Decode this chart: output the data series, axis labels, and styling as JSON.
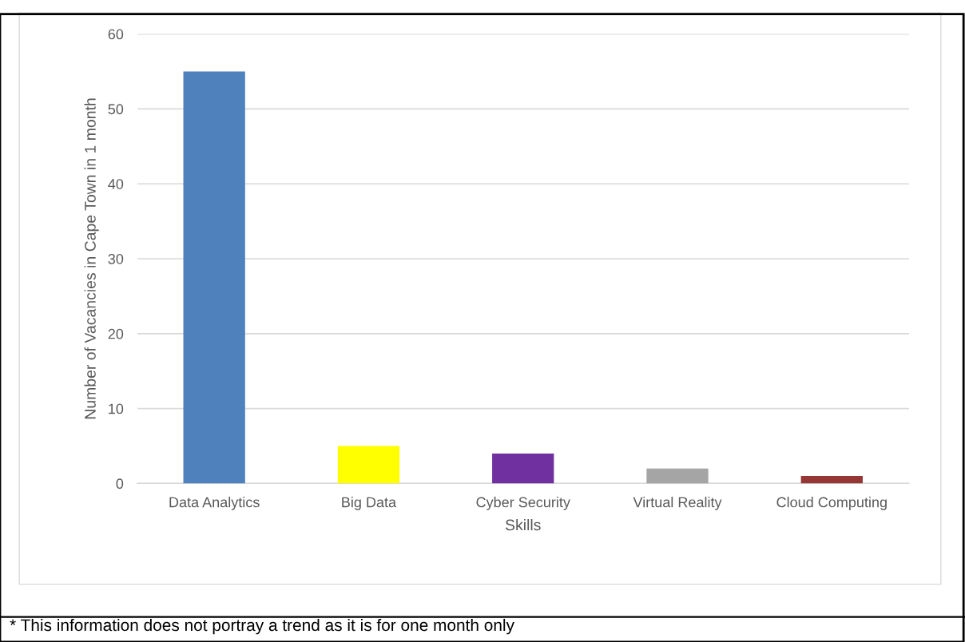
{
  "chart_data": {
    "type": "bar",
    "xlabel": "Skills",
    "ylabel": "Number of Vacancies in Cape Town in 1 month",
    "categories": [
      "Data Analytics",
      "Big Data",
      "Cyber Security",
      "Virtual Reality",
      "Cloud Computing"
    ],
    "values": [
      55,
      5,
      4,
      2,
      1
    ],
    "colors": [
      "#4f81bd",
      "#ffff00",
      "#7030a0",
      "#a5a5a5",
      "#953735"
    ],
    "ylim": [
      0,
      60
    ],
    "yticks": [
      0,
      10,
      20,
      30,
      40,
      50,
      60
    ],
    "grid": "y",
    "legend": false,
    "annotations": [
      "* This information does not portray a trend as it is for one month only"
    ]
  }
}
